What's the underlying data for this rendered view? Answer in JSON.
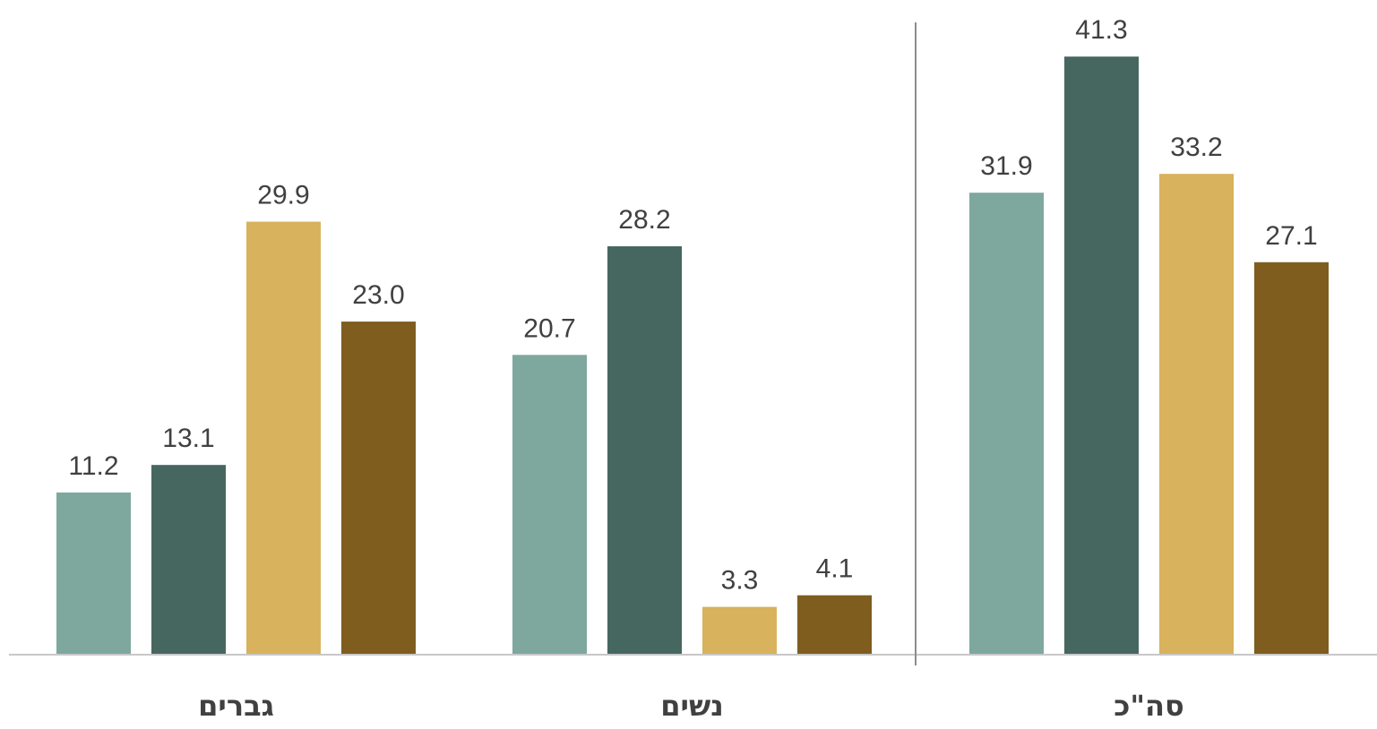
{
  "chart_data": {
    "type": "bar",
    "title": "",
    "xlabel": "",
    "ylabel": "",
    "ylim": [
      0,
      45
    ],
    "grid": false,
    "legend": "none",
    "categories": [
      "גברים",
      "נשים",
      "סה\"כ"
    ],
    "series": [
      {
        "color": "#7ea89e",
        "values": [
          11.2,
          20.7,
          31.9
        ],
        "labels": [
          "11.2",
          "20.7",
          "31.9"
        ]
      },
      {
        "color": "#466760",
        "values": [
          13.1,
          28.2,
          41.3
        ],
        "labels": [
          "13.1",
          "28.2",
          "41.3"
        ]
      },
      {
        "color": "#d8b25c",
        "values": [
          29.9,
          3.3,
          33.2
        ],
        "labels": [
          "29.9",
          "3.3",
          "33.2"
        ]
      },
      {
        "color": "#7e5d1f",
        "values": [
          23.0,
          4.1,
          27.1
        ],
        "labels": [
          "23.0",
          "4.1",
          "27.1"
        ]
      }
    ]
  }
}
